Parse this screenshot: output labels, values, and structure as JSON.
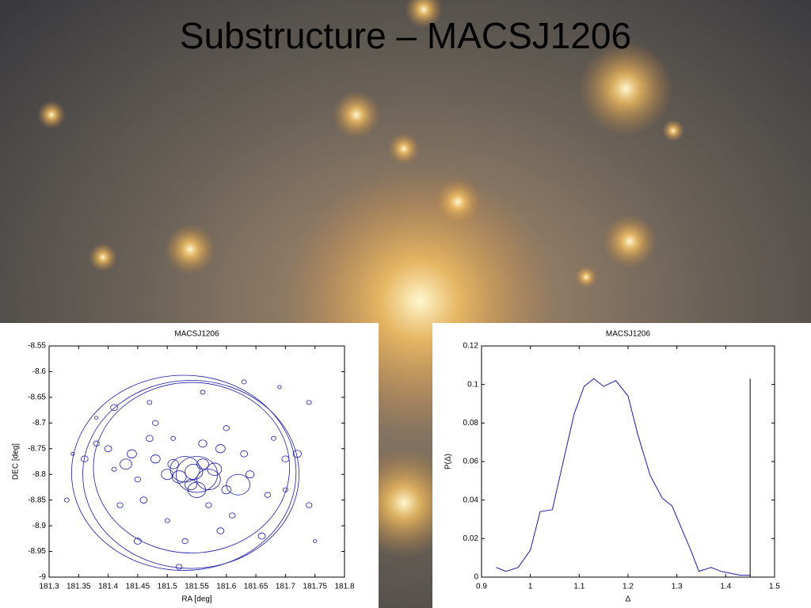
{
  "title": "Substructure – MACSJ1206",
  "chart_data": [
    {
      "type": "scatter",
      "title": "MACSJ1206",
      "xlabel": "RA [deg]",
      "ylabel": "DEC [deg]",
      "color": "#1a1aa8",
      "xlim": [
        181.3,
        181.8
      ],
      "ylim": [
        -9,
        -8.55
      ],
      "xticks": [
        181.3,
        181.35,
        181.4,
        181.45,
        181.5,
        181.55,
        181.6,
        181.65,
        181.7,
        181.75,
        181.8
      ],
      "yticks": [
        -8.55,
        -8.6,
        -8.65,
        -8.7,
        -8.75,
        -8.8,
        -8.85,
        -8.9,
        -8.95,
        -9
      ],
      "x": [
        181.528,
        181.54,
        181.541,
        181.55,
        181.53,
        181.57,
        181.545,
        181.52,
        181.56,
        181.54,
        181.51,
        181.58,
        181.5,
        181.55,
        181.62,
        181.48,
        181.44,
        181.43,
        181.4,
        181.38,
        181.36,
        181.33,
        181.42,
        181.46,
        181.45,
        181.53,
        181.52,
        181.59,
        181.6,
        181.64,
        181.67,
        181.66,
        181.7,
        181.72,
        181.74,
        181.75,
        181.63,
        181.59,
        181.56,
        181.48,
        181.41,
        181.47,
        181.56,
        181.63,
        181.69,
        181.74,
        181.38,
        181.34,
        181.6,
        181.51,
        181.47,
        181.45,
        181.41,
        181.68,
        181.7,
        181.57,
        181.5,
        181.61
      ],
      "y": [
        -8.797,
        -8.8,
        -8.787,
        -8.8,
        -8.79,
        -8.81,
        -8.795,
        -8.805,
        -8.78,
        -8.82,
        -8.78,
        -8.79,
        -8.8,
        -8.83,
        -8.82,
        -8.77,
        -8.76,
        -8.78,
        -8.75,
        -8.74,
        -8.77,
        -8.85,
        -8.86,
        -8.85,
        -8.93,
        -8.93,
        -8.98,
        -8.91,
        -8.83,
        -8.8,
        -8.84,
        -8.92,
        -8.77,
        -8.76,
        -8.86,
        -8.93,
        -8.76,
        -8.75,
        -8.74,
        -8.7,
        -8.67,
        -8.66,
        -8.64,
        -8.62,
        -8.63,
        -8.66,
        -8.69,
        -8.76,
        -8.71,
        -8.73,
        -8.73,
        -8.81,
        -8.79,
        -8.73,
        -8.83,
        -8.86,
        -8.89,
        -8.88
      ],
      "sizes": [
        0.19,
        0.183,
        0.166,
        0.035,
        0.025,
        0.02,
        0.015,
        0.012,
        0.01,
        0.01,
        0.009,
        0.012,
        0.01,
        0.015,
        0.02,
        0.008,
        0.008,
        0.01,
        0.006,
        0.005,
        0.006,
        0.004,
        0.005,
        0.006,
        0.006,
        0.005,
        0.005,
        0.006,
        0.008,
        0.007,
        0.005,
        0.006,
        0.006,
        0.007,
        0.005,
        0.003,
        0.006,
        0.008,
        0.007,
        0.005,
        0.006,
        0.004,
        0.004,
        0.004,
        0.003,
        0.004,
        0.003,
        0.003,
        0.005,
        0.004,
        0.006,
        0.005,
        0.004,
        0.004,
        0.004,
        0.005,
        0.004,
        0.005
      ]
    },
    {
      "type": "line",
      "title": "MACSJ1206",
      "xlabel": "Δ",
      "ylabel": "P(Δ)",
      "color": "#1a1aa8",
      "xlim": [
        0.9,
        1.5
      ],
      "ylim": [
        0,
        0.12
      ],
      "xticks": [
        0.9,
        1,
        1.1,
        1.2,
        1.3,
        1.4,
        1.5
      ],
      "yticks": [
        0,
        0.02,
        0.04,
        0.06,
        0.08,
        0.1,
        0.12
      ],
      "x": [
        0.93,
        0.95,
        0.975,
        1.0,
        1.02,
        1.045,
        1.07,
        1.09,
        1.11,
        1.13,
        1.15,
        1.175,
        1.2,
        1.22,
        1.245,
        1.27,
        1.29,
        1.31,
        1.33,
        1.345,
        1.37,
        1.39,
        1.41,
        1.43,
        1.45
      ],
      "y": [
        0.005,
        0.003,
        0.005,
        0.014,
        0.034,
        0.035,
        0.063,
        0.085,
        0.099,
        0.103,
        0.099,
        0.102,
        0.094,
        0.074,
        0.053,
        0.041,
        0.037,
        0.025,
        0.013,
        0.003,
        0.005,
        0.003,
        0.002,
        0.001,
        0.001
      ],
      "vline": {
        "x": 1.45,
        "top": 0.103
      }
    }
  ]
}
